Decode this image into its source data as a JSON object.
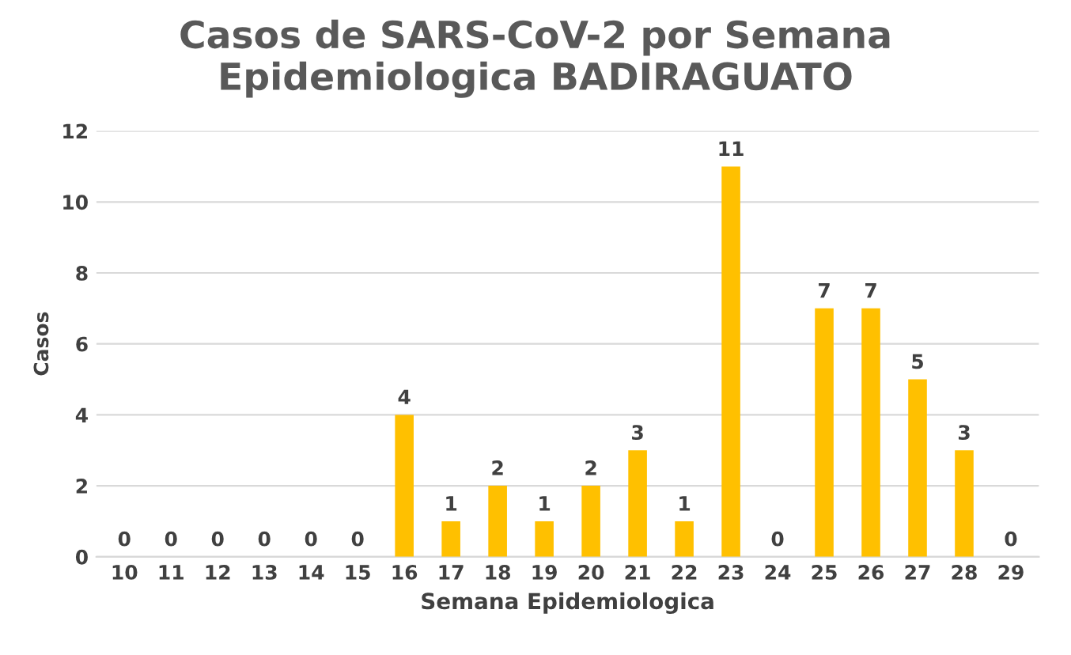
{
  "chart_data": {
    "type": "bar",
    "title": "Casos de SARS-CoV-2 por Semana\nEpidemiologica BADIRAGUATO",
    "xlabel": "Semana Epidemiologica",
    "ylabel": "Casos",
    "categories": [
      "10",
      "11",
      "12",
      "13",
      "14",
      "15",
      "16",
      "17",
      "18",
      "19",
      "20",
      "21",
      "22",
      "23",
      "24",
      "25",
      "26",
      "27",
      "28",
      "29"
    ],
    "values": [
      0,
      0,
      0,
      0,
      0,
      0,
      4,
      1,
      2,
      1,
      2,
      3,
      1,
      11,
      0,
      7,
      7,
      5,
      3,
      0
    ],
    "color": "#ffc000",
    "ylim": [
      0,
      12
    ],
    "yticks": [
      0,
      2,
      4,
      6,
      8,
      10,
      12
    ],
    "grid": "y",
    "data_labels": true
  }
}
